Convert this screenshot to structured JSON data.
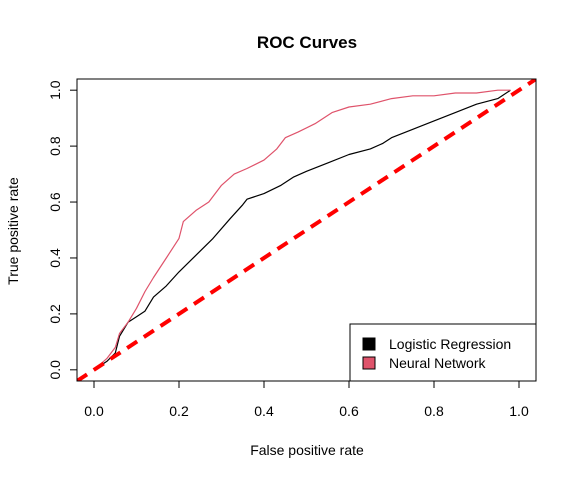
{
  "chart_data": {
    "type": "line",
    "title": "ROC Curves",
    "xlabel": "False positive rate",
    "ylabel": "True positive rate",
    "xlim": [
      -0.04,
      1.04
    ],
    "ylim": [
      -0.04,
      1.04
    ],
    "xticks": [
      "0.0",
      "0.2",
      "0.4",
      "0.6",
      "0.8",
      "1.0"
    ],
    "yticks": [
      "0.0",
      "0.2",
      "0.4",
      "0.6",
      "0.8",
      "1.0"
    ],
    "legend_position": "bottom-right",
    "series": [
      {
        "name": "Logistic Regression",
        "color": "#000000",
        "x": [
          0.0,
          0.03,
          0.05,
          0.06,
          0.08,
          0.1,
          0.12,
          0.14,
          0.17,
          0.2,
          0.24,
          0.28,
          0.32,
          0.35,
          0.36,
          0.4,
          0.44,
          0.47,
          0.5,
          0.55,
          0.6,
          0.65,
          0.68,
          0.7,
          0.75,
          0.8,
          0.85,
          0.9,
          0.95,
          0.98
        ],
        "y": [
          0.0,
          0.03,
          0.06,
          0.12,
          0.17,
          0.19,
          0.21,
          0.26,
          0.3,
          0.35,
          0.41,
          0.47,
          0.54,
          0.59,
          0.61,
          0.63,
          0.66,
          0.69,
          0.71,
          0.74,
          0.77,
          0.79,
          0.81,
          0.83,
          0.86,
          0.89,
          0.92,
          0.95,
          0.97,
          1.0
        ]
      },
      {
        "name": "Neural Network",
        "color": "#DF536B",
        "x": [
          0.0,
          0.03,
          0.05,
          0.06,
          0.08,
          0.1,
          0.12,
          0.14,
          0.17,
          0.2,
          0.21,
          0.24,
          0.27,
          0.3,
          0.33,
          0.36,
          0.4,
          0.43,
          0.45,
          0.48,
          0.52,
          0.56,
          0.6,
          0.65,
          0.7,
          0.75,
          0.8,
          0.85,
          0.9,
          0.95,
          0.98
        ],
        "y": [
          0.0,
          0.04,
          0.08,
          0.13,
          0.17,
          0.22,
          0.28,
          0.33,
          0.4,
          0.47,
          0.53,
          0.57,
          0.6,
          0.66,
          0.7,
          0.72,
          0.75,
          0.79,
          0.83,
          0.85,
          0.88,
          0.92,
          0.94,
          0.95,
          0.97,
          0.98,
          0.98,
          0.99,
          0.99,
          1.0,
          1.0
        ]
      },
      {
        "name": "",
        "color": "#FF0000",
        "style": "dashed",
        "x": [
          -0.04,
          1.04
        ],
        "y": [
          -0.04,
          1.04
        ]
      }
    ]
  }
}
